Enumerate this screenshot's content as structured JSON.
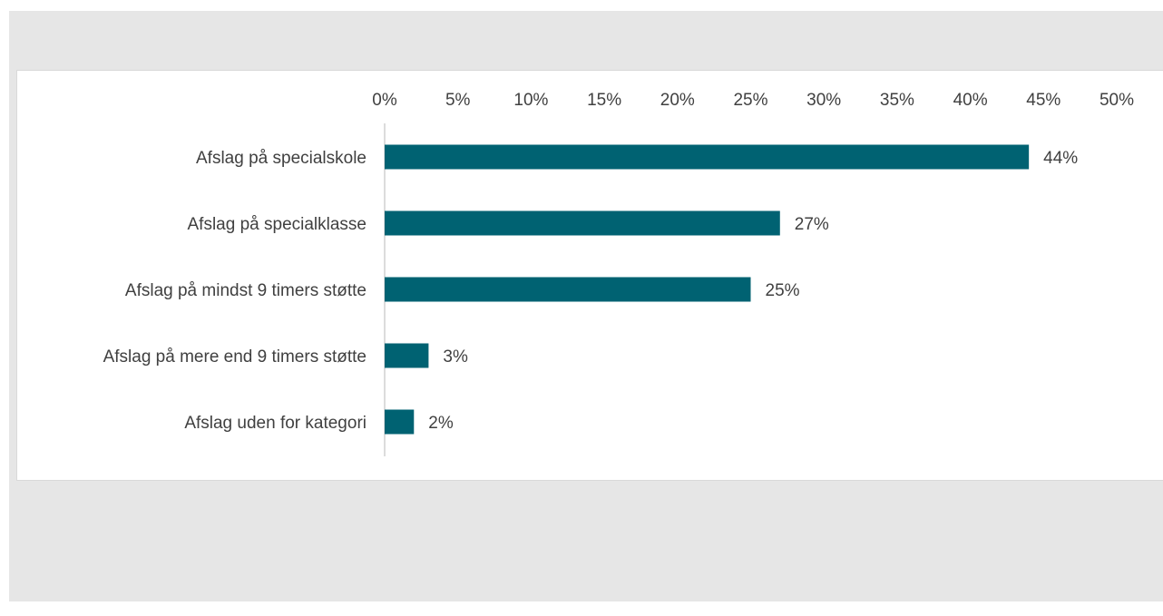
{
  "chart_data": {
    "type": "bar",
    "orientation": "horizontal",
    "categories": [
      "Afslag på specialskole",
      "Afslag på specialklasse",
      "Afslag på mindst 9 timers støtte",
      "Afslag på mere end 9 timers støtte",
      "Afslag uden for kategori"
    ],
    "values": [
      44,
      27,
      25,
      3,
      2
    ],
    "value_labels": [
      "44%",
      "27%",
      "25%",
      "3%",
      "2%"
    ],
    "x_ticks": [
      0,
      5,
      10,
      15,
      20,
      25,
      30,
      35,
      40,
      45,
      50
    ],
    "x_tick_labels": [
      "0%",
      "5%",
      "10%",
      "15%",
      "20%",
      "25%",
      "30%",
      "35%",
      "40%",
      "45%",
      "50%"
    ],
    "xlim": [
      0,
      50
    ],
    "axis_position": "top",
    "grid": false,
    "bar_color": "#006272"
  }
}
